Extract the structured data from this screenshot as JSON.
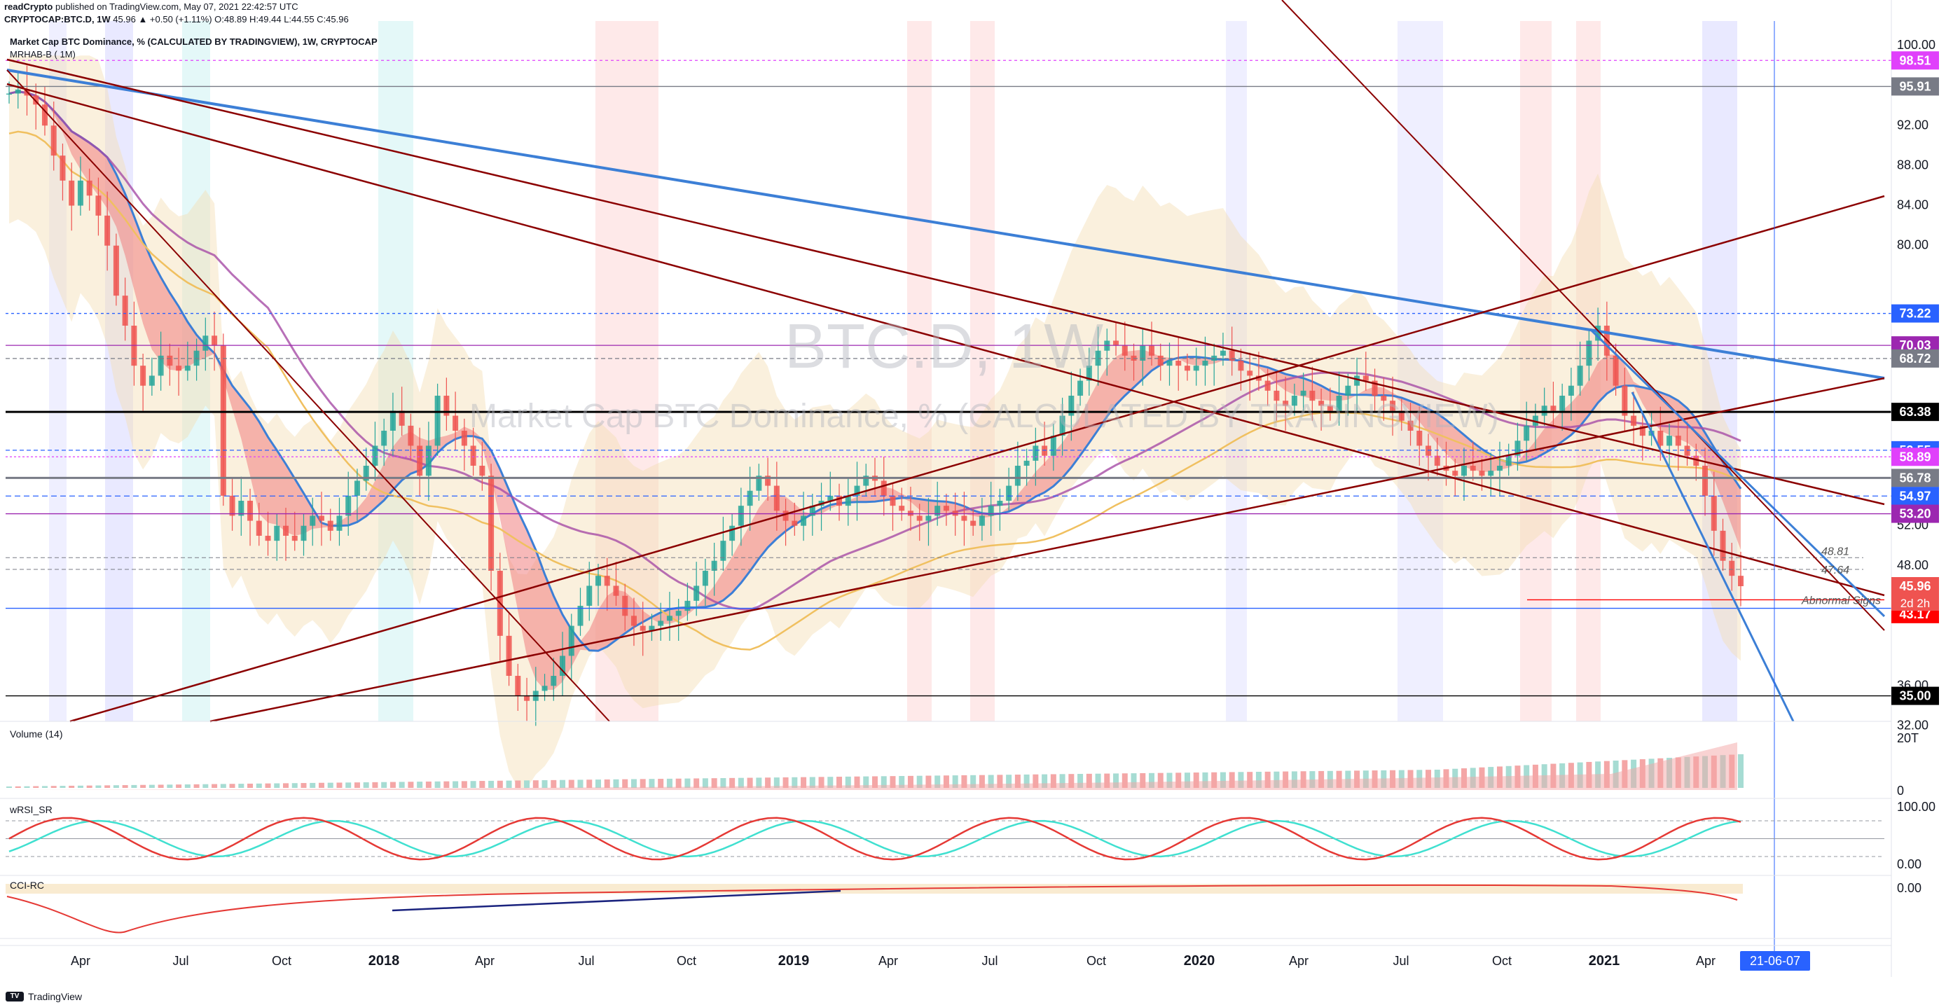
{
  "header": {
    "line1_user": "readCrypto",
    "line1_rest": "published on TradingView.com, May 07, 2021 22:42:57 UTC",
    "line2_symbol": "CRYPTOCAP:BTC.D, 1W",
    "line2_ohlc": "45.96 ▲ +0.50 (+1.11%) O:48.89 H:49.44 L:44.55 C:45.96",
    "line3": "Market Cap BTC Dominance, % (CALCULATED BY TRADINGVIEW), 1W, CRYPTOCAP",
    "line4": "MRHAB-B ( 1M)"
  },
  "watermark": {
    "symbol": "BTC.D, 1W",
    "name": "Market Cap BTC Dominance, % (CALCULATED BY TRADINGVIEW)"
  },
  "panes": {
    "volume_label": "Volume (14)",
    "wrsi_label": "wRSI_SR",
    "cci_label": "CCI-RC",
    "volume_ticks": [
      "20T",
      "0"
    ],
    "wrsi_ticks": [
      "100.00",
      "0.00"
    ],
    "cci_ticks": [
      "0.00"
    ]
  },
  "footer": {
    "brand": "TradingView"
  },
  "colors": {
    "up": "#26a69a",
    "down": "#ef5350",
    "blue_line": "#3c7fd6",
    "dark_red": "#8b0000",
    "red_band": "#f08080",
    "cyan_band": "#7fd3e0",
    "beige": "#f5deb3",
    "purple": "#a64ca6"
  },
  "chart_data": {
    "type": "candlestick",
    "title": "Market Cap BTC Dominance, % (CALCULATED BY TRADINGVIEW), 1W, CRYPTOCAP",
    "ylim": [
      30,
      100
    ],
    "y_ticks": [
      32,
      36,
      48,
      52,
      80,
      84,
      88,
      92,
      100
    ],
    "x_ticks": [
      "Apr",
      "Jul",
      "Oct",
      "2018",
      "Apr",
      "Jul",
      "Oct",
      "2019",
      "Apr",
      "Jul",
      "Oct",
      "2020",
      "Apr",
      "Jul",
      "Oct",
      "2021",
      "Apr"
    ],
    "current_date_label": "21-06-07",
    "last": {
      "value": 45.96,
      "countdown": "2d 2h"
    },
    "price_labels": [
      {
        "value": 98.51,
        "text": "98.51",
        "color": "#e040fb"
      },
      {
        "value": 95.91,
        "text": "95.91",
        "color": "#787b86"
      },
      {
        "value": 73.22,
        "text": "73.22",
        "color": "#2962ff"
      },
      {
        "value": 70.03,
        "text": "70.03",
        "color": "#9c27b0"
      },
      {
        "value": 68.72,
        "text": "68.72",
        "color": "#787b86"
      },
      {
        "value": 63.38,
        "text": "63.38",
        "color": "#000000"
      },
      {
        "value": 59.55,
        "text": "59.55",
        "color": "#2962ff"
      },
      {
        "value": 58.89,
        "text": "58.89",
        "color": "#e040fb"
      },
      {
        "value": 56.78,
        "text": "56.78",
        "color": "#787b86"
      },
      {
        "value": 54.97,
        "text": "54.97",
        "color": "#2962ff"
      },
      {
        "value": 53.2,
        "text": "53.20",
        "color": "#9c27b0"
      },
      {
        "value": 45.96,
        "text": "45.96",
        "color": "#ef5350"
      },
      {
        "value": 43.75,
        "text": "43.75",
        "color": "#2962ff"
      },
      {
        "value": 43.17,
        "text": "43.17",
        "color": "#ff0000"
      },
      {
        "value": 35.0,
        "text": "35.00",
        "color": "#000000"
      }
    ],
    "minor_labels": [
      {
        "value": 48.81,
        "text": "48.81"
      },
      {
        "value": 47.64,
        "text": "47.64"
      }
    ],
    "annotation": {
      "text": "Abnormal Signs",
      "value": 44.6
    },
    "series_close": [
      95.2,
      95.6,
      95.0,
      94.1,
      92.0,
      89.0,
      86.5,
      84.0,
      86.5,
      85.0,
      83.0,
      80.0,
      75.0,
      72.0,
      68.0,
      66.0,
      67.0,
      69.0,
      68.0,
      67.5,
      68.0,
      69.5,
      71.0,
      70.0,
      55.0,
      53.0,
      54.5,
      52.5,
      51.0,
      50.5,
      52.0,
      51.0,
      50.5,
      52.0,
      53.0,
      52.5,
      51.5,
      53.0,
      55.0,
      56.5,
      58.0,
      60.0,
      61.5,
      63.5,
      62.0,
      60.0,
      57.0,
      60.0,
      65.0,
      63.0,
      61.5,
      60.0,
      58.0,
      57.0,
      47.5,
      41.0,
      37.0,
      35.0,
      34.5,
      35.5,
      36.0,
      37.0,
      39.0,
      42.0,
      44.0,
      46.0,
      47.0,
      46.0,
      45.0,
      43.0,
      42.0,
      41.5,
      42.0,
      42.5,
      43.0,
      43.5,
      44.5,
      46.0,
      47.5,
      48.5,
      50.5,
      52.0,
      54.0,
      55.5,
      57.0,
      56.0,
      53.5,
      52.5,
      52.0,
      53.0,
      54.0,
      54.5,
      55.0,
      54.0,
      55.0,
      56.0,
      57.0,
      56.5,
      55.0,
      54.0,
      53.5,
      53.0,
      52.5,
      53.0,
      54.0,
      53.5,
      53.0,
      52.5,
      52.0,
      53.0,
      54.0,
      54.5,
      56.0,
      58.0,
      58.5,
      60.0,
      59.0,
      61.0,
      63.0,
      65.0,
      66.5,
      68.0,
      69.5,
      70.5,
      70.0,
      69.0,
      68.5,
      70.0,
      69.0,
      68.0,
      68.5,
      68.0,
      67.5,
      68.0,
      68.5,
      69.0,
      69.5,
      68.5,
      67.5,
      67.0,
      66.5,
      65.5,
      64.5,
      64.0,
      65.0,
      65.5,
      64.5,
      64.0,
      63.5,
      65.0,
      66.0,
      67.0,
      66.5,
      65.0,
      64.5,
      63.5,
      62.5,
      61.5,
      60.0,
      59.0,
      58.0,
      57.5,
      57.0,
      58.0,
      57.5,
      57.0,
      57.5,
      58.0,
      59.0,
      60.5,
      62.0,
      63.0,
      64.0,
      63.5,
      65.0,
      66.0,
      68.0,
      70.5,
      72.0,
      69.0,
      66.0,
      63.0,
      62.0,
      61.0,
      61.5,
      60.0,
      61.0,
      60.0,
      59.0,
      58.0,
      55.0,
      51.5,
      48.5,
      47.0,
      45.96
    ],
    "volume_range": [
      0,
      20
    ],
    "wrsi_range": [
      0,
      100
    ],
    "cci_zero": 0
  }
}
